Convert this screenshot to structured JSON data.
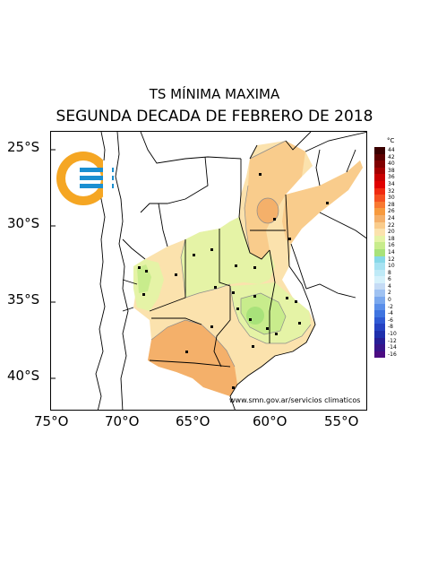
{
  "title_line1": "TS MÍNIMA MAXIMA",
  "title_line2": "SEGUNDA DECADA DE FEBRERO DE 2018",
  "credit": "www.smn.gov.ar/servicios climaticos",
  "lat_labels": [
    "25°S",
    "30°S",
    "35°S",
    "40°S"
  ],
  "lon_labels": [
    "75°O",
    "70°O",
    "65°O",
    "60°O",
    "55°O"
  ],
  "legend": {
    "unit": "°C",
    "labels": [
      "44",
      "42",
      "40",
      "38",
      "36",
      "34",
      "32",
      "30",
      "28",
      "26",
      "24",
      "22",
      "20",
      "18",
      "16",
      "14",
      "12",
      "10",
      "8",
      "6",
      "4",
      "2",
      "0",
      "-2",
      "-4",
      "-6",
      "-8",
      "-10",
      "-12",
      "-14",
      "-16"
    ],
    "colors": [
      "#3a0000",
      "#5c0000",
      "#800000",
      "#a30000",
      "#c80000",
      "#e00000",
      "#f02a10",
      "#f55020",
      "#f87830",
      "#f79a3e",
      "#f4b06a",
      "#f9cc8c",
      "#fbe2ad",
      "#e5f3a6",
      "#c8ec8c",
      "#a8e27a",
      "#86d8e8",
      "#a6e2f2",
      "#bfeaf7",
      "#d5f1fb",
      "#c5dbf5",
      "#9fc2f2",
      "#7aa8ee",
      "#5a8ee9",
      "#3f74e0",
      "#2f5ad4",
      "#2542c2",
      "#1e2fac",
      "#271e96",
      "#38148a",
      "#4c0c82"
    ]
  },
  "station_markers": "black square station markers",
  "logo_icon": "smn-logo-icon"
}
